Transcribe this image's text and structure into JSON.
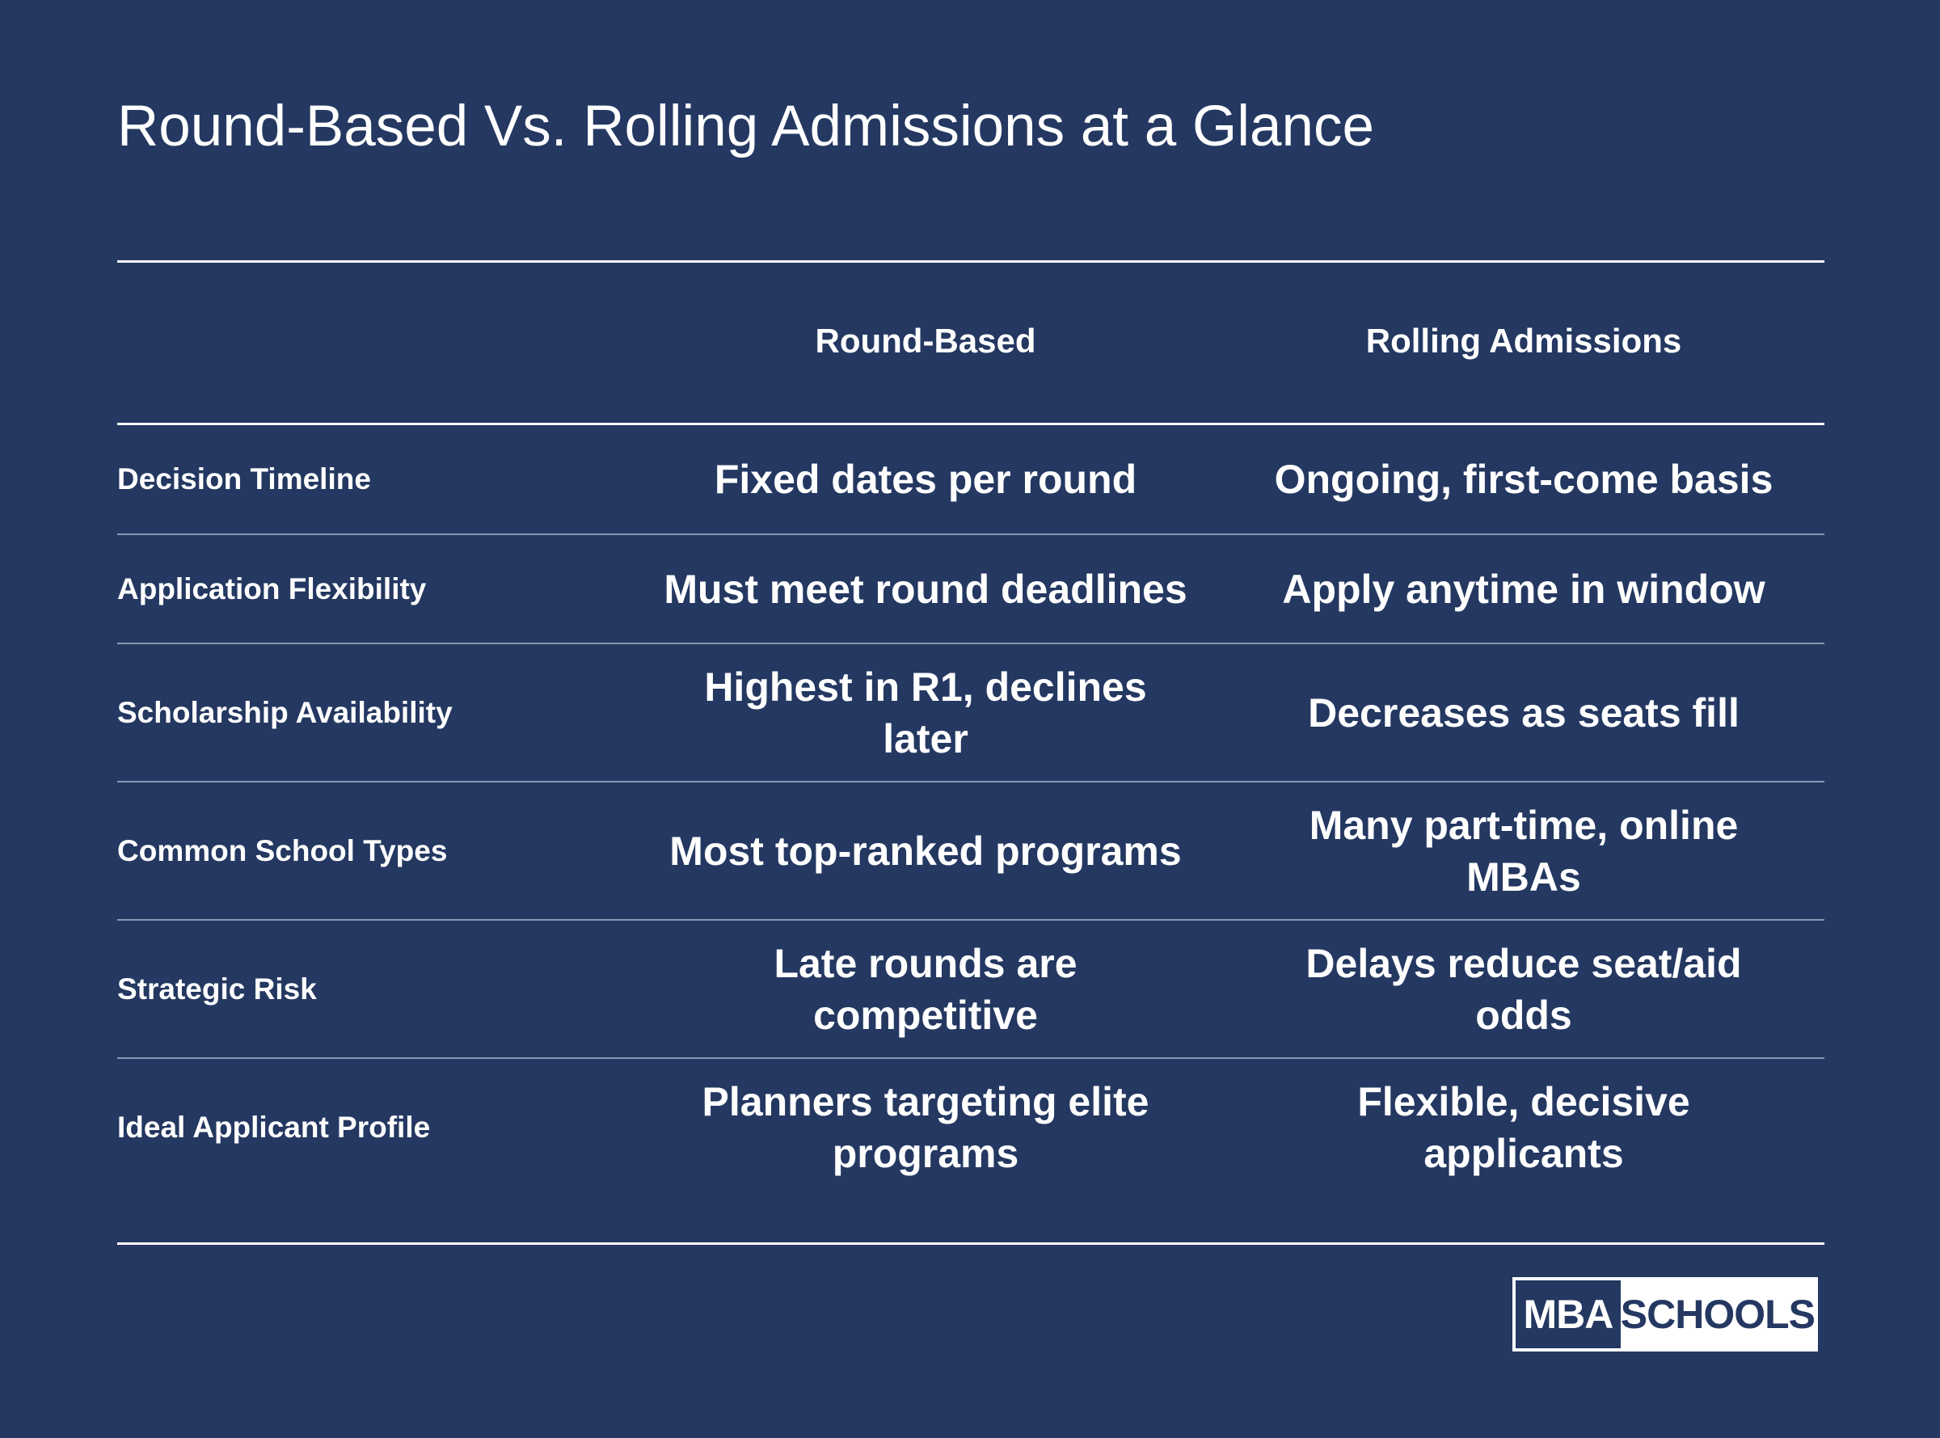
{
  "title": "Round-Based Vs. Rolling Admissions at a Glance",
  "columns": {
    "a": "Round-Based",
    "b": "Rolling Admissions"
  },
  "rows": [
    {
      "label": "Decision Timeline",
      "a": [
        "Fixed dates per round"
      ],
      "b": [
        "Ongoing, first-come basis"
      ]
    },
    {
      "label": "Application Flexibility",
      "a": [
        "Must meet round deadlines"
      ],
      "b": [
        "Apply anytime in window"
      ]
    },
    {
      "label": "Scholarship Availability",
      "a": [
        "Highest in R1, declines",
        "later"
      ],
      "b": [
        "Decreases as seats fill"
      ]
    },
    {
      "label": "Common School Types",
      "a": [
        "Most top-ranked programs"
      ],
      "b": [
        "Many part-time, online",
        "MBAs"
      ]
    },
    {
      "label": "Strategic Risk",
      "a": [
        "Late rounds are",
        "competitive"
      ],
      "b": [
        "Delays reduce seat/aid",
        "odds"
      ]
    },
    {
      "label": "Ideal Applicant Profile",
      "a": [
        "Planners targeting elite",
        "programs"
      ],
      "b": [
        "Flexible, decisive",
        "applicants"
      ]
    }
  ],
  "logo": {
    "left": "MBA",
    "right": "SCHOOLS"
  },
  "colors": {
    "background": "#243861",
    "text": "#ffffff"
  }
}
